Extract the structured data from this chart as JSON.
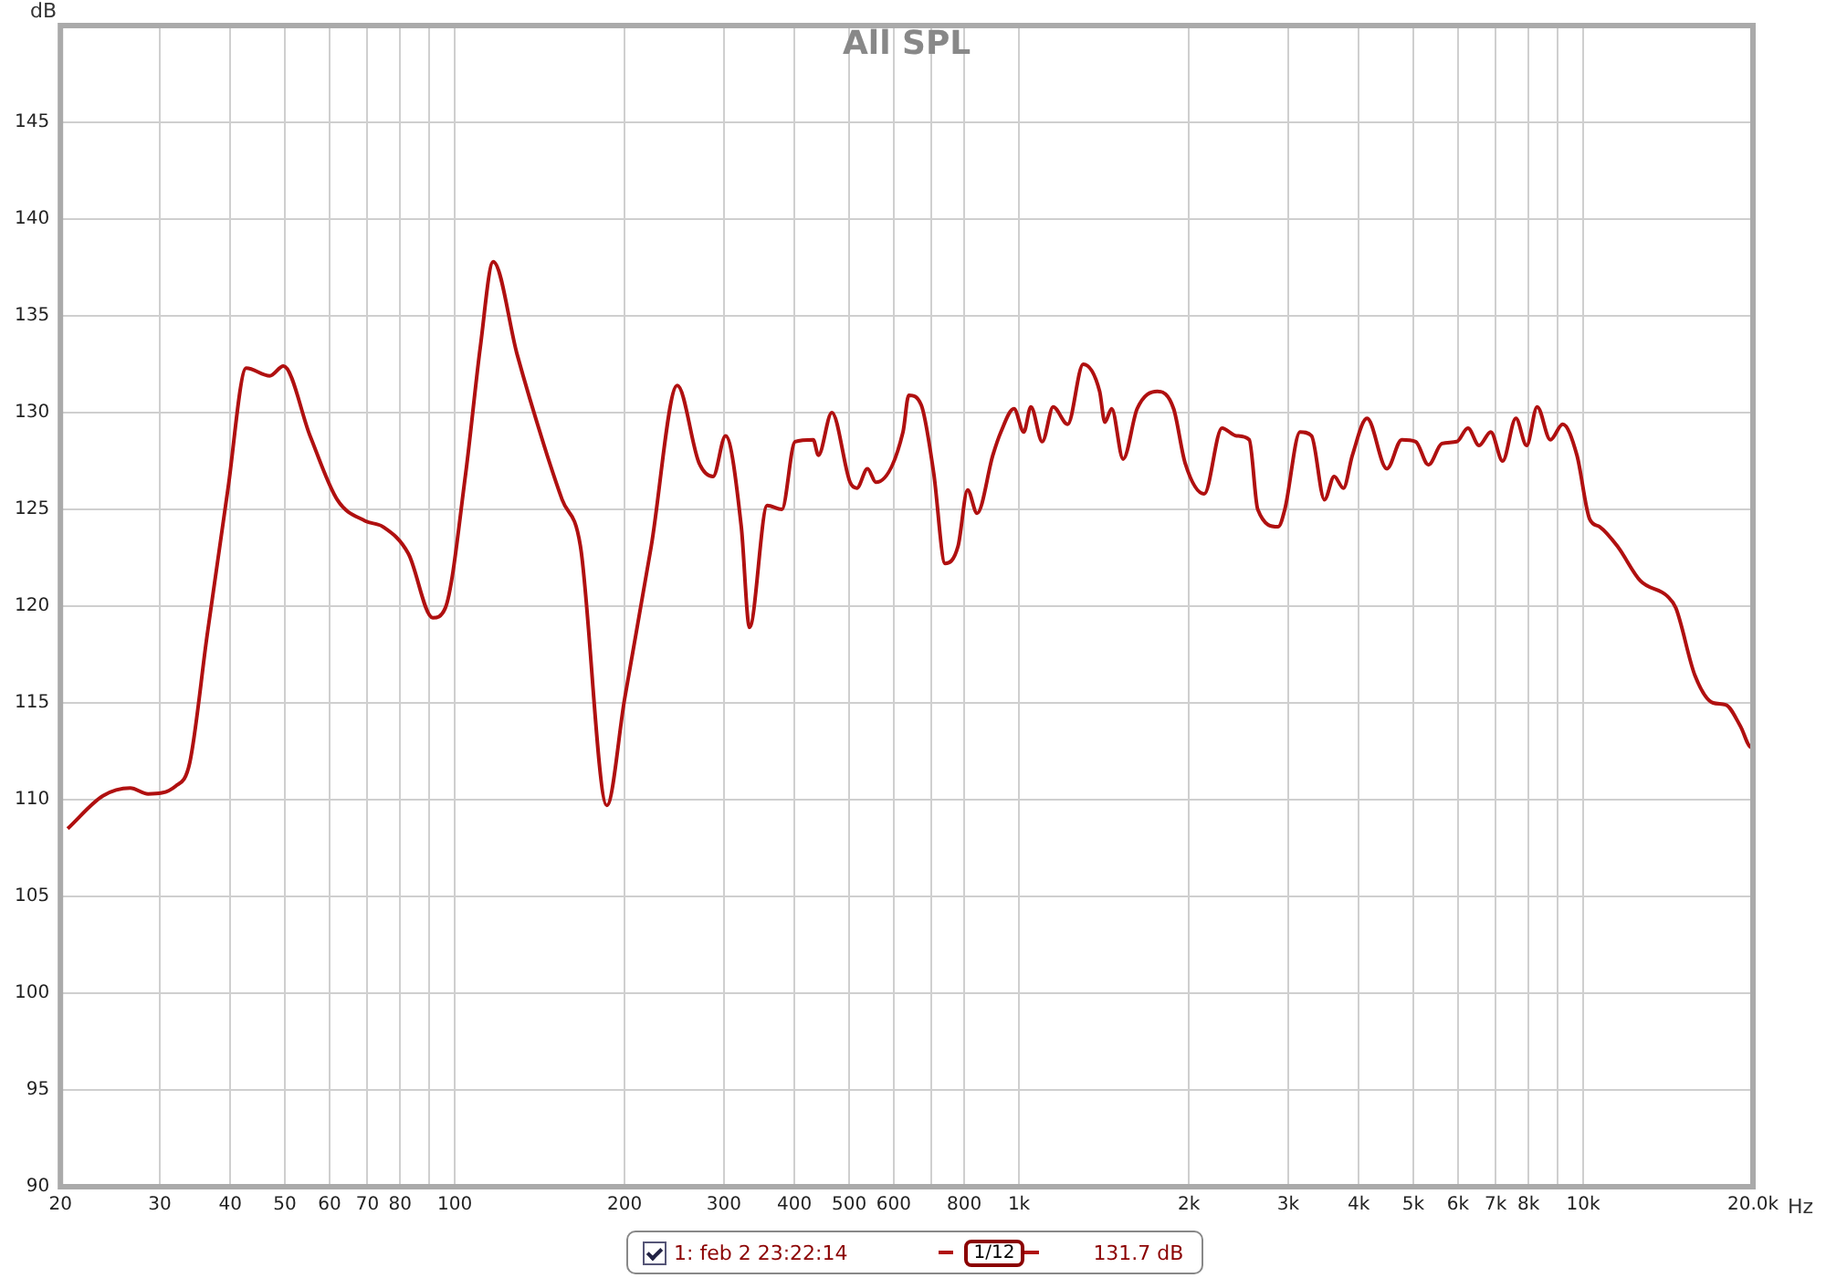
{
  "chart_data": {
    "type": "line",
    "title": "All SPL",
    "xlabel": "Hz",
    "ylabel": "dB",
    "log": "x",
    "grid": true,
    "legend": "bottom",
    "marker": "none",
    "line_style": "solid",
    "xlim": [
      20,
      20000
    ],
    "xticks": [
      20,
      30,
      40,
      50,
      60,
      70,
      80,
      {
        "value": 90,
        "label": null
      },
      100,
      200,
      300,
      400,
      500,
      600,
      {
        "value": 700,
        "label": null
      },
      800,
      {
        "value": 1000,
        "label": "1k"
      },
      {
        "value": 2000,
        "label": "2k"
      },
      {
        "value": 3000,
        "label": "3k"
      },
      {
        "value": 4000,
        "label": "4k"
      },
      {
        "value": 5000,
        "label": "5k"
      },
      {
        "value": 6000,
        "label": "6k"
      },
      {
        "value": 7000,
        "label": "7k"
      },
      {
        "value": 8000,
        "label": "8k"
      },
      {
        "value": 9000,
        "label": null
      },
      {
        "value": 10000,
        "label": "10k"
      },
      {
        "value": 20000,
        "label": "20.0k"
      }
    ],
    "ylim": [
      90,
      150
    ],
    "yticks": [
      90,
      95,
      100,
      105,
      110,
      115,
      120,
      125,
      130,
      135,
      140,
      145,
      {
        "value": 150,
        "label": null
      }
    ],
    "annotations": [
      "1/12",
      "131.7 dB"
    ],
    "series": [
      {
        "name": "1: feb 2 23:22:14",
        "color": "#b01010",
        "x": [
          20.6,
          23.8,
          26.6,
          28.6,
          32.0,
          33.9,
          36.4,
          39.6,
          42.7,
          47,
          49.7,
          55.4,
          61.9,
          69.4,
          74.6,
          82.8,
          91.4,
          96.2,
          104.6,
          111,
          117,
          129,
          144,
          155,
          167,
          186,
          200,
          223,
          248,
          271,
          287,
          302,
          322,
          333,
          358,
          380,
          401,
          432,
          441,
          466,
          502,
          516,
          539,
          558,
          623,
          638,
          671,
          706,
          740,
          780,
          811,
          843,
          899,
          929,
          980,
          1020,
          1050,
          1100,
          1150,
          1220,
          1300,
          1390,
          1420,
          1460,
          1530,
          1620,
          1760,
          1880,
          1970,
          2130,
          2290,
          2430,
          2560,
          2650,
          2880,
          2960,
          3150,
          3300,
          3480,
          3620,
          3760,
          3900,
          4140,
          4490,
          4770,
          5050,
          5320,
          5620,
          5970,
          6250,
          6540,
          6860,
          7200,
          7600,
          7940,
          8290,
          8750,
          9200,
          9750,
          10270,
          10700,
          11500,
          12640,
          14120,
          14600,
          15790,
          17000,
          17900,
          19000,
          19870,
          20000
        ],
        "values": [
          108.5,
          110.2,
          110.6,
          110.3,
          110.7,
          111.9,
          118.5,
          126.0,
          132.3,
          131.9,
          132.4,
          128.8,
          125.5,
          124.4,
          124.1,
          122.7,
          119.4,
          119.9,
          126.9,
          133.4,
          137.8,
          133.0,
          128.3,
          125.5,
          123.1,
          109.7,
          115.2,
          123.1,
          131.4,
          127.4,
          126.7,
          128.8,
          124.1,
          118.9,
          125.2,
          125.0,
          128.5,
          128.6,
          127.8,
          130.0,
          126.4,
          126.1,
          127.1,
          126.4,
          129.0,
          130.9,
          130.4,
          126.9,
          122.2,
          123.1,
          126.0,
          124.8,
          127.8,
          129.0,
          130.2,
          129.0,
          130.3,
          128.5,
          130.3,
          129.4,
          132.5,
          131.1,
          129.5,
          130.2,
          127.6,
          130.2,
          131.1,
          130.2,
          127.4,
          125.8,
          129.2,
          128.8,
          128.6,
          125.0,
          124.1,
          125.0,
          129.0,
          128.8,
          125.5,
          126.7,
          126.1,
          127.8,
          129.7,
          127.1,
          128.6,
          128.5,
          127.3,
          128.4,
          128.5,
          129.2,
          128.3,
          129.0,
          127.5,
          129.7,
          128.3,
          130.3,
          128.6,
          129.4,
          127.8,
          124.5,
          124.1,
          123.1,
          121.3,
          120.5,
          119.9,
          116.4,
          115.0,
          114.9,
          113.8,
          112.7,
          112.7
        ]
      }
    ]
  }
}
